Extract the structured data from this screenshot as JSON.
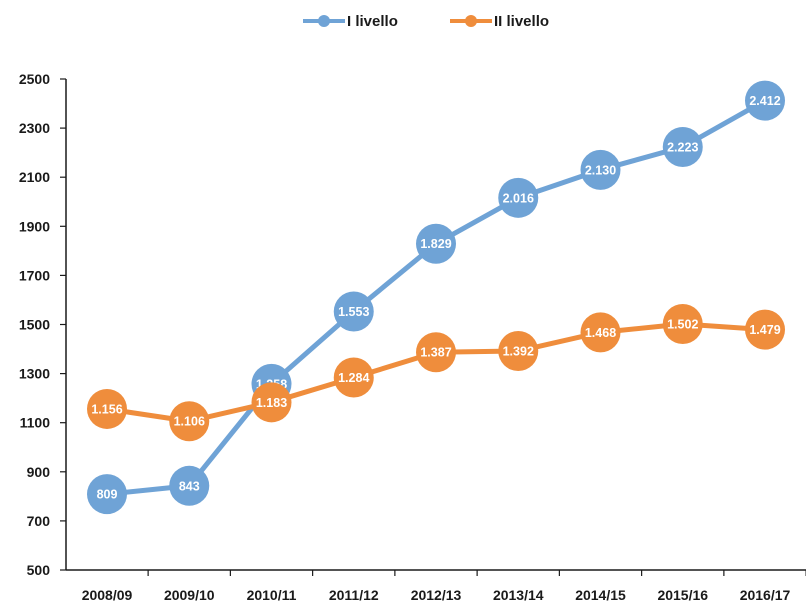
{
  "chart_data": {
    "type": "line",
    "categories": [
      "2008/09",
      "2009/10",
      "2010/11",
      "2011/12",
      "2012/13",
      "2013/14",
      "2014/15",
      "2015/16",
      "2016/17"
    ],
    "series": [
      {
        "name": "I livello",
        "color": "#6fa3d6",
        "values": [
          809,
          843,
          1258,
          1553,
          1829,
          2016,
          2130,
          2223,
          2412
        ],
        "labels": [
          "809",
          "843",
          "1.258",
          "1.553",
          "1.829",
          "2.016",
          "2.130",
          "2.223",
          "2.412"
        ]
      },
      {
        "name": "II livello",
        "color": "#ef8d3c",
        "values": [
          1156,
          1106,
          1183,
          1284,
          1387,
          1392,
          1468,
          1502,
          1479
        ],
        "labels": [
          "1.156",
          "1.106",
          "1.183",
          "1.284",
          "1.387",
          "1.392",
          "1.468",
          "1.502",
          "1.479"
        ]
      }
    ],
    "yticks": [
      "500",
      "700",
      "900",
      "1100",
      "1300",
      "1500",
      "1700",
      "1900",
      "2100",
      "2300",
      "2500"
    ],
    "ylim": [
      500,
      2500
    ],
    "title": "",
    "xlabel": "",
    "ylabel": "",
    "grid": false,
    "legend_position": "top-center"
  }
}
